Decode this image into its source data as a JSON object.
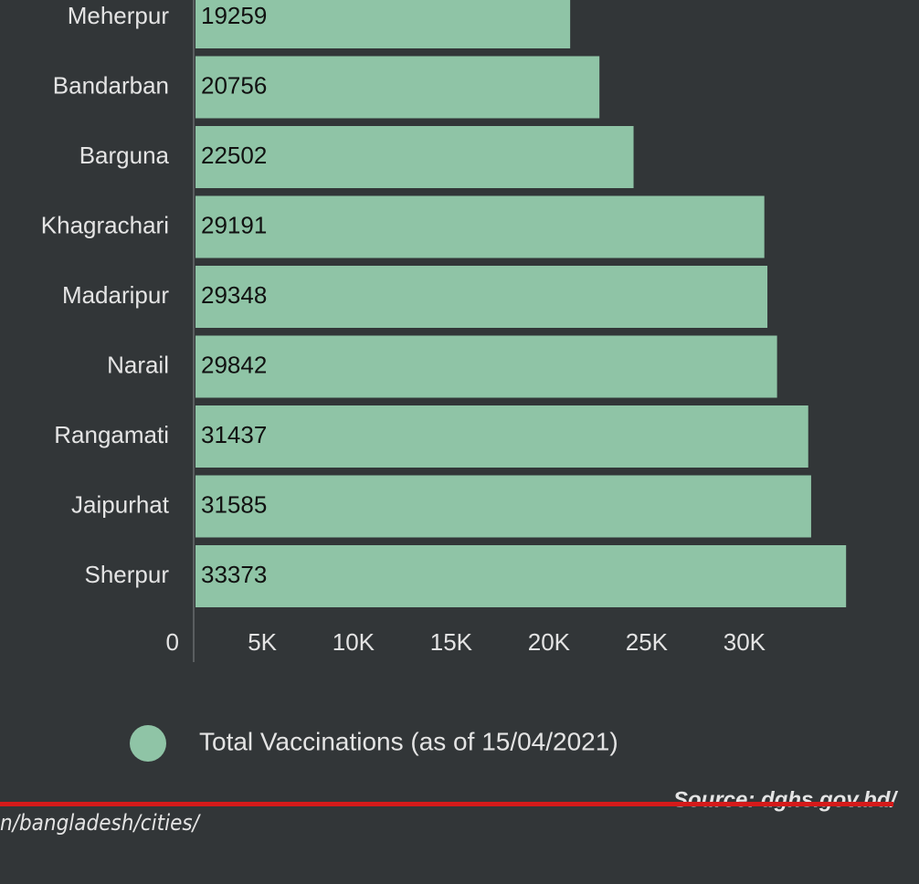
{
  "chart_data": {
    "type": "bar",
    "orientation": "horizontal",
    "categories": [
      "Meherpur",
      "Bandarban",
      "Barguna",
      "Khagrachari",
      "Madaripur",
      "Narail",
      "Rangamati",
      "Jaipurhat",
      "Sherpur"
    ],
    "series": [
      {
        "name": "Total Vaccinations (as of 15/04/2021)",
        "color": "#8fc4a6",
        "values": [
          19259,
          20756,
          22502,
          29191,
          29348,
          29842,
          31437,
          31585,
          33373
        ]
      }
    ],
    "xlim": [
      0,
      35000
    ],
    "xticks": [
      0,
      {
        "value": 5000,
        "label": "5K"
      },
      {
        "value": 10000,
        "label": "10K"
      },
      {
        "value": 15000,
        "label": "15K"
      },
      {
        "value": 20000,
        "label": "20K"
      },
      {
        "value": 25000,
        "label": "25K"
      },
      {
        "value": 30000,
        "label": "30K"
      }
    ],
    "source": "Source: dghs.gov.bd/",
    "url": "n/bangladesh/cities/"
  }
}
